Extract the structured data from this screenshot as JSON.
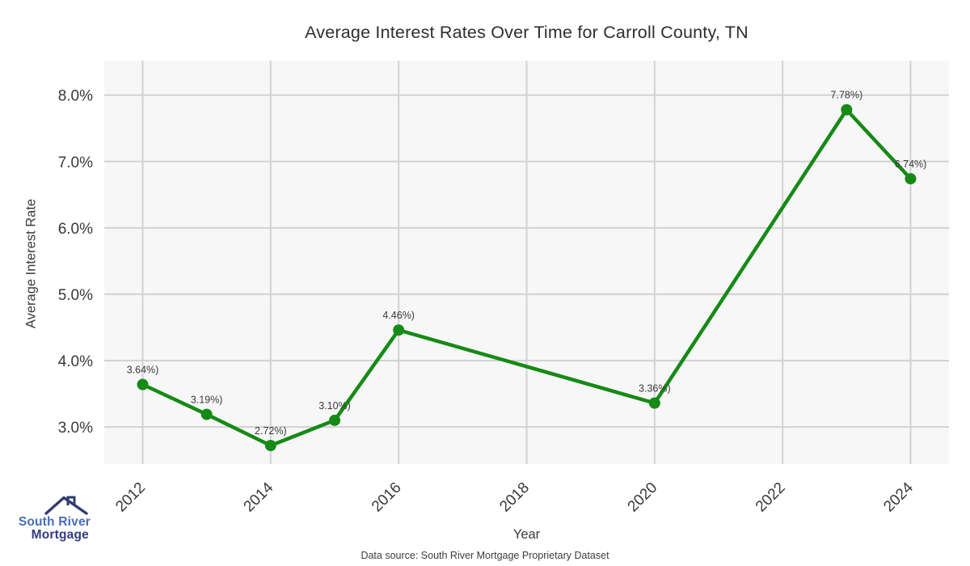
{
  "title": "Average Interest Rates Over Time for Carroll County, TN",
  "source_note": "Data source: South River Mortgage Proprietary Dataset",
  "logo": {
    "line1": "South River",
    "line2": "Mortgage"
  },
  "colors": {
    "plot_bg": "#f7f7f7",
    "grid": "#d2d2d2",
    "text": "#3a3a3a",
    "title_text": "#2e2e2e",
    "line_green": "#168a16",
    "logo_blue": "#4a6cb4",
    "logo_navy": "#333b80",
    "roof_navy": "#323c6e"
  },
  "chart_data": {
    "type": "line",
    "title": "Average Interest Rates Over Time for Carroll County, TN",
    "xlabel": "Year",
    "ylabel": "Average Interest Rate",
    "x": [
      2012,
      2013,
      2014,
      2015,
      2016,
      2020,
      2023,
      2024
    ],
    "values": [
      3.64,
      3.19,
      2.72,
      3.1,
      4.46,
      3.36,
      7.78,
      6.74
    ],
    "point_labels": [
      "3.64%)",
      "3.19%)",
      "2.72%)",
      "3.10%)",
      "4.46%)",
      "3.36%)",
      "7.78%)",
      "6.74%)"
    ],
    "x_ticks": [
      2012,
      2014,
      2016,
      2018,
      2020,
      2022,
      2024
    ],
    "y_ticks": [
      3.0,
      4.0,
      5.0,
      6.0,
      7.0,
      8.0
    ],
    "y_tick_labels": [
      "3.0%",
      "4.0%",
      "5.0%",
      "6.0%",
      "7.0%",
      "8.0%"
    ],
    "xlim": [
      2011.4,
      2024.6
    ],
    "ylim": [
      2.44,
      8.52
    ],
    "grid": true,
    "legend": "none",
    "line_color": "#168a16"
  }
}
